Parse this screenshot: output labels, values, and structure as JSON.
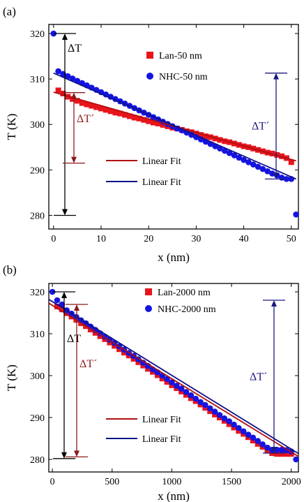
{
  "chart_data": [
    {
      "panel_label": "(a)",
      "type": "scatter",
      "xlabel": "x (nm)",
      "ylabel": "T (K)",
      "xlim": [
        -1,
        51.5
      ],
      "ylim": [
        277,
        322
      ],
      "xticks": [
        0,
        10,
        20,
        30,
        40,
        50
      ],
      "yticks": [
        280,
        290,
        300,
        310,
        320
      ],
      "grid": false,
      "series": [
        {
          "name": "Lan-50 nm",
          "marker": "square",
          "color": "#e8141c",
          "x": [
            1,
            2,
            3,
            4,
            5,
            6,
            7,
            8,
            9,
            10,
            11,
            12,
            13,
            14,
            15,
            16,
            17,
            18,
            19,
            20,
            21,
            22,
            23,
            24,
            25,
            26,
            27,
            28,
            29,
            30,
            31,
            32,
            33,
            34,
            35,
            36,
            37,
            38,
            39,
            40,
            41,
            42,
            43,
            44,
            45,
            46,
            47,
            48,
            49,
            50
          ],
          "values": [
            307.5,
            306.8,
            306.1,
            305.6,
            305.2,
            304.7,
            304.4,
            304.1,
            303.8,
            303.5,
            303.2,
            302.9,
            302.6,
            302.4,
            302.1,
            301.8,
            301.5,
            301.3,
            301.0,
            300.7,
            300.4,
            300.2,
            299.9,
            299.6,
            299.3,
            299.1,
            298.8,
            298.5,
            298.3,
            298.0,
            297.7,
            297.4,
            297.2,
            296.9,
            296.6,
            296.3,
            296.1,
            295.8,
            295.5,
            295.2,
            295.0,
            294.7,
            294.4,
            294.1,
            293.8,
            293.6,
            293.3,
            293.0,
            292.6,
            291.7
          ]
        },
        {
          "name": "NHC-50 nm",
          "marker": "circle",
          "color": "#1414e0",
          "x": [
            0,
            1,
            2,
            3,
            4,
            5,
            6,
            7,
            8,
            9,
            10,
            11,
            12,
            13,
            14,
            15,
            16,
            17,
            18,
            19,
            20,
            21,
            22,
            23,
            24,
            25,
            26,
            27,
            28,
            29,
            30,
            31,
            32,
            33,
            34,
            35,
            36,
            37,
            38,
            39,
            40,
            41,
            42,
            43,
            44,
            45,
            46,
            47,
            48,
            49,
            50,
            51
          ],
          "values": [
            320.0,
            311.7,
            311.1,
            310.6,
            310.1,
            309.6,
            309.1,
            308.6,
            308.1,
            307.6,
            307.1,
            306.6,
            306.1,
            305.6,
            305.1,
            304.6,
            304.1,
            303.6,
            303.1,
            302.6,
            302.1,
            301.6,
            301.1,
            300.6,
            300.1,
            299.6,
            299.1,
            298.7,
            298.2,
            297.7,
            297.2,
            296.7,
            296.2,
            295.7,
            295.2,
            294.7,
            294.2,
            293.7,
            293.2,
            292.7,
            292.2,
            291.7,
            291.2,
            290.7,
            290.2,
            289.7,
            289.2,
            288.8,
            288.3,
            288.0,
            288.0,
            280.2
          ]
        }
      ],
      "fits": [
        {
          "name": "Linear Fit",
          "color": "#b01010",
          "x": [
            0,
            51
          ],
          "y": [
            307.1,
            292.0
          ]
        },
        {
          "name": "Linear Fit",
          "color": "#10108a",
          "x": [
            0,
            51
          ],
          "y": [
            311.3,
            288.0
          ]
        }
      ],
      "annotations": [
        {
          "label": "ΔT",
          "color": "#000000",
          "x": 2.3,
          "y_from": 280.0,
          "y_to": 320.0
        },
        {
          "label": "ΔT´",
          "color": "#8b1a1a",
          "x": 3.0,
          "y_from": 291.5,
          "y_to": 307.0
        },
        {
          "label": "ΔT´",
          "color": "#1a1a80",
          "x": 48.8,
          "y_from": 288.0,
          "y_to": 311.3
        }
      ]
    },
    {
      "panel_label": "(b)",
      "type": "scatter",
      "xlabel": "x (nm)",
      "ylabel": "T (K)",
      "xlim": [
        -30,
        2060
      ],
      "ylim": [
        277,
        322
      ],
      "xticks": [
        0,
        500,
        1000,
        1500,
        2000
      ],
      "yticks": [
        280,
        290,
        300,
        310,
        320
      ],
      "grid": false,
      "series": [
        {
          "name": "Lan-2000 nm",
          "marker": "square",
          "color": "#e8141c",
          "x": [
            40,
            80,
            120,
            160,
            200,
            240,
            280,
            320,
            360,
            400,
            440,
            480,
            520,
            560,
            600,
            640,
            680,
            720,
            760,
            800,
            840,
            880,
            920,
            960,
            1000,
            1040,
            1080,
            1120,
            1160,
            1200,
            1240,
            1280,
            1320,
            1360,
            1400,
            1440,
            1480,
            1520,
            1560,
            1600,
            1640,
            1680,
            1720,
            1760,
            1800,
            1840,
            1880,
            1920,
            1960,
            2000
          ],
          "values": [
            316.5,
            315.8,
            314.9,
            314.1,
            313.3,
            312.5,
            311.8,
            311.0,
            310.2,
            309.4,
            308.7,
            307.9,
            307.1,
            306.3,
            305.5,
            304.8,
            304.0,
            303.2,
            302.4,
            301.6,
            300.9,
            300.1,
            299.3,
            298.5,
            297.7,
            297.0,
            296.2,
            295.4,
            294.6,
            293.9,
            293.1,
            292.3,
            291.5,
            290.7,
            290.0,
            289.2,
            288.4,
            287.6,
            286.8,
            286.1,
            285.3,
            284.5,
            283.7,
            283.0,
            282.2,
            281.5,
            281.3,
            281.3,
            281.3,
            281.3
          ]
        },
        {
          "name": "NHC-2000 nm",
          "marker": "circle",
          "color": "#1414e0",
          "x": [
            0,
            40,
            80,
            120,
            160,
            200,
            240,
            280,
            320,
            360,
            400,
            440,
            480,
            520,
            560,
            600,
            640,
            680,
            720,
            760,
            800,
            840,
            880,
            920,
            960,
            1000,
            1040,
            1080,
            1120,
            1160,
            1200,
            1240,
            1280,
            1320,
            1360,
            1400,
            1440,
            1480,
            1520,
            1560,
            1600,
            1640,
            1680,
            1720,
            1760,
            1800,
            1840,
            1880,
            1920,
            1960,
            2000,
            2040
          ],
          "values": [
            320.0,
            318.0,
            317.0,
            315.6,
            314.8,
            314.0,
            313.2,
            312.5,
            311.7,
            310.9,
            310.1,
            309.3,
            308.6,
            307.8,
            307.0,
            306.2,
            305.4,
            304.7,
            303.9,
            303.1,
            302.3,
            301.5,
            300.8,
            300.0,
            299.2,
            298.4,
            297.6,
            296.9,
            296.1,
            295.3,
            294.5,
            293.7,
            293.0,
            292.2,
            291.4,
            290.6,
            289.8,
            289.1,
            288.3,
            287.5,
            286.7,
            285.9,
            285.2,
            284.4,
            283.6,
            282.8,
            282.3,
            282.3,
            282.3,
            282.2,
            281.9,
            280.0
          ]
        }
      ],
      "fits": [
        {
          "name": "Linear Fit",
          "color": "#b01010",
          "x": [
            -30,
            2060
          ],
          "y": [
            317.3,
            280.7
          ]
        },
        {
          "name": "Linear Fit",
          "color": "#10108a",
          "x": [
            -30,
            2060
          ],
          "y": [
            318.2,
            281.4
          ]
        }
      ],
      "annotations": [
        {
          "label": "ΔT",
          "color": "#000000",
          "x": 75,
          "y_from": 280.2,
          "y_to": 320.0
        },
        {
          "label": "ΔT´",
          "color": "#8b1a1a",
          "x": 95,
          "y_from": 280.6,
          "y_to": 317.0
        },
        {
          "label": "ΔT´",
          "color": "#1a1a80",
          "x": 1950,
          "y_from": 281.5,
          "y_to": 318.0
        }
      ]
    }
  ]
}
